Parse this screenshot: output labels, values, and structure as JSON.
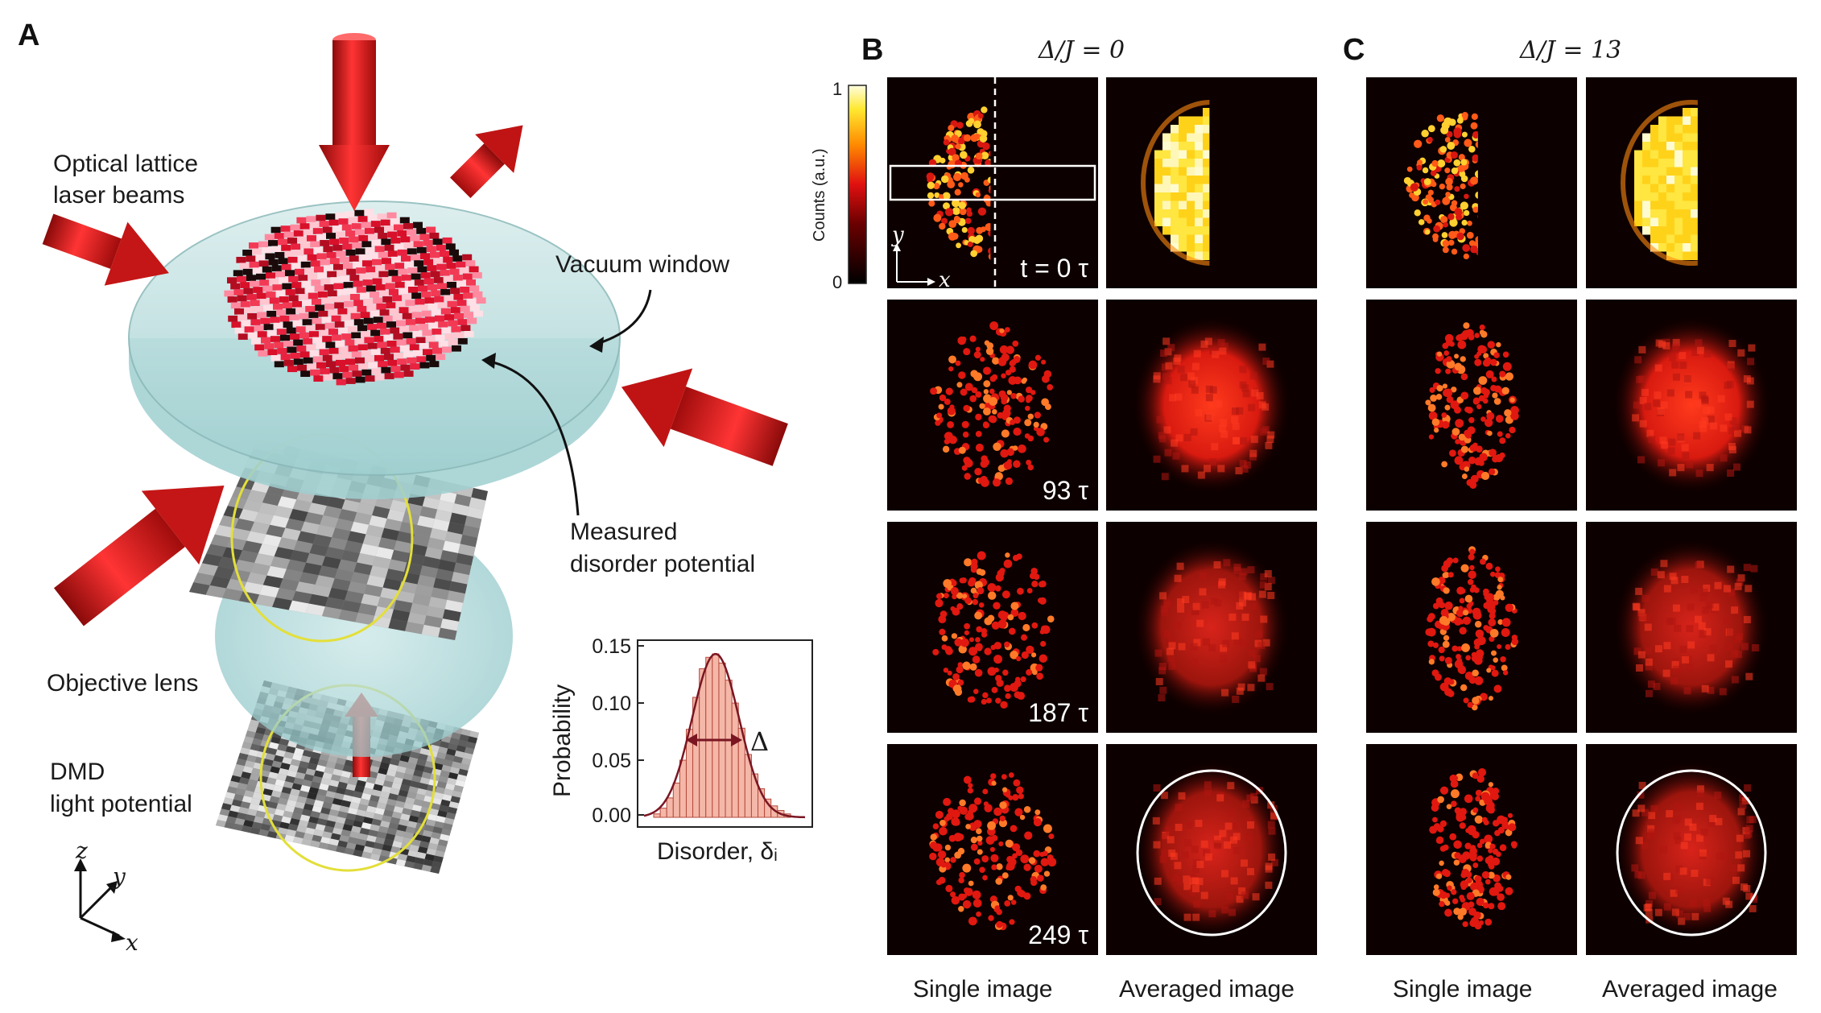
{
  "panels": {
    "a": {
      "letter": "A",
      "labels": {
        "lattice_line1": "Optical lattice",
        "lattice_line2": "laser beams",
        "vacuum_window": "Vacuum window",
        "measured_line1": "Measured",
        "measured_line2": "disorder potential",
        "objective_lens": "Objective lens",
        "dmd_line1": "DMD",
        "dmd_line2": "light potential",
        "axis_z": "z",
        "axis_y": "y",
        "axis_x": "x"
      }
    },
    "b": {
      "letter": "B",
      "title": "Δ/J = 0"
    },
    "c": {
      "letter": "C",
      "title": "Δ/J = 13"
    },
    "colorbar": {
      "label": "Counts (a.u.)",
      "max": "1",
      "min": "0"
    },
    "time_labels": [
      "t = 0 τ",
      "93 τ",
      "187 τ",
      "249 τ"
    ],
    "inset_axes": {
      "y": "y",
      "x": "x"
    },
    "column_labels": {
      "b_single": "Single image",
      "b_avg": "Averaged image",
      "c_single": "Single image",
      "c_avg": "Averaged image"
    }
  },
  "chart_data": {
    "type": "bar",
    "title": "",
    "xlabel": "Disorder, δᵢ",
    "ylabel": "Probability",
    "ylim": [
      0,
      0.15
    ],
    "yticks": [
      "0.00",
      "0.05",
      "0.10",
      "0.15"
    ],
    "histogram_values": [
      0.003,
      0.008,
      0.017,
      0.03,
      0.05,
      0.077,
      0.105,
      0.13,
      0.14,
      0.143,
      0.135,
      0.12,
      0.1,
      0.078,
      0.055,
      0.038,
      0.025,
      0.016,
      0.01,
      0.006,
      0.003
    ],
    "fit_curve": "gaussian",
    "width_marker": "Δ",
    "colors": {
      "bars": "#f4b7a8",
      "bar_edge": "#b5493c",
      "fit": "#7a1622"
    }
  }
}
